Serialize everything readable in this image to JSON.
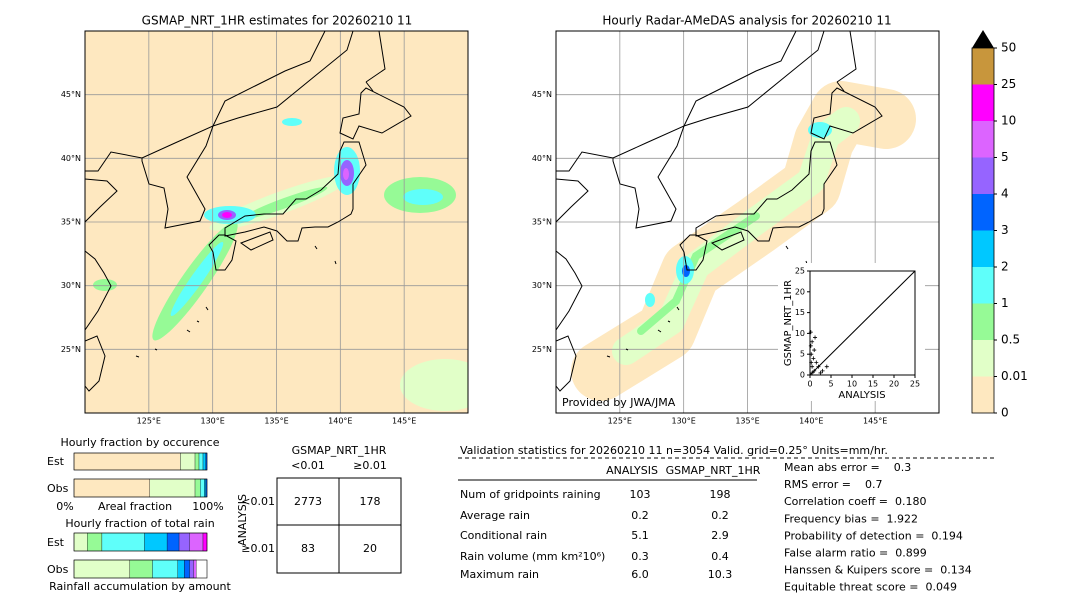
{
  "maps": [
    {
      "title": "GSMAP_NRT_1HR estimates for 20260210 11",
      "lonlim": [
        120,
        150
      ],
      "latlim": [
        20,
        50
      ],
      "lonticks": [
        {
          "value": 125,
          "label": "125°E"
        },
        {
          "value": 130,
          "label": "130°E"
        },
        {
          "value": 135,
          "label": "135°E"
        },
        {
          "value": 140,
          "label": "140°E"
        },
        {
          "value": 145,
          "label": "145°E"
        }
      ],
      "latticks": [
        {
          "value": 45,
          "label": "45°N"
        },
        {
          "value": 40,
          "label": "40°N"
        },
        {
          "value": 35,
          "label": "35°N"
        },
        {
          "value": 30,
          "label": "30°N"
        },
        {
          "value": 25,
          "label": "25°N"
        }
      ]
    },
    {
      "title": "Hourly Radar-AMeDAS analysis for 20260210 11",
      "lonlim": [
        120,
        150
      ],
      "latlim": [
        20,
        50
      ],
      "lonticks": [
        {
          "value": 125,
          "label": "125°E"
        },
        {
          "value": 130,
          "label": "130°E"
        },
        {
          "value": 135,
          "label": "135°E"
        },
        {
          "value": 140,
          "label": "140°E"
        },
        {
          "value": 145,
          "label": "145°E"
        }
      ],
      "latticks": [
        {
          "value": 45,
          "label": "45°N"
        },
        {
          "value": 40,
          "label": "40°N"
        },
        {
          "value": 35,
          "label": "35°N"
        },
        {
          "value": 30,
          "label": "30°N"
        },
        {
          "value": 25,
          "label": "25°N"
        }
      ],
      "credit": "Provided by JWA/JMA"
    }
  ],
  "colorbar": {
    "levels": [
      0,
      0.01,
      0.5,
      1,
      2,
      3,
      4,
      5,
      10,
      25,
      50
    ],
    "colors": [
      "#fee8c0",
      "#e1ffc8",
      "#96fa96",
      "#5ffffa",
      "#00c8ff",
      "#0064ff",
      "#9664ff",
      "#dc64ff",
      "#ff00ff",
      "#c8963c"
    ],
    "over_color": "#000000"
  },
  "scatter": {
    "type": "scatter",
    "xlabel": "ANALYSIS",
    "ylabel": "GSMAP_NRT_1HR",
    "xlim": [
      0,
      25
    ],
    "ylim": [
      0,
      25
    ],
    "xticks": [
      0,
      5,
      10,
      15,
      20,
      25
    ],
    "yticks": [
      0,
      5,
      10,
      15,
      20,
      25
    ],
    "x": [
      0.2,
      0.5,
      1,
      0.3,
      0.8,
      1.5,
      0.5,
      2,
      3,
      0.2,
      1,
      0.5,
      4,
      0.3,
      2.5,
      1.2
    ],
    "y": [
      10.3,
      8,
      6,
      5,
      4,
      3,
      2,
      2,
      1,
      7,
      1,
      0.5,
      2,
      3,
      0.5,
      9
    ]
  },
  "occurrence": {
    "title": "Hourly fraction by occurence",
    "rows": [
      {
        "label": "Est",
        "segments": [
          80,
          11,
          3,
          3,
          2,
          1
        ]
      },
      {
        "label": "Obs",
        "segments": [
          57,
          34,
          4,
          3,
          1,
          1
        ]
      }
    ],
    "axis_left": "0%",
    "axis_mid": "Areal fraction",
    "axis_right": "100%"
  },
  "total_rain": {
    "title": "Hourly fraction of total rain",
    "rows": [
      {
        "label": "Est",
        "segments": [
          0,
          10,
          11,
          32,
          17,
          9,
          8,
          10,
          3
        ]
      },
      {
        "label": "Obs",
        "segments": [
          0,
          42,
          17,
          19,
          5,
          4,
          3,
          2
        ]
      }
    ],
    "caption": "Rainfall accumulation by amount"
  },
  "contingency": {
    "col_title": "GSMAP_NRT_1HR",
    "col_labels": [
      "<0.01",
      "≥0.01"
    ],
    "row_title": "ANALYSIS",
    "row_labels": [
      "<0.01",
      "≥0.01"
    ],
    "cells": [
      [
        "2773",
        "178"
      ],
      [
        "83",
        "20"
      ]
    ]
  },
  "validation": {
    "title": "Validation statistics for 20260210 11  n=3054 Valid. grid=0.25° Units=mm/hr.",
    "headers": [
      "ANALYSIS",
      "GSMAP_NRT_1HR"
    ],
    "rows": [
      {
        "label": "Num of gridpoints raining",
        "values": [
          "103",
          "198"
        ]
      },
      {
        "label": "Average rain",
        "values": [
          "0.2",
          "0.2"
        ]
      },
      {
        "label": "Conditional rain",
        "values": [
          "5.1",
          "2.9"
        ]
      },
      {
        "label": "Rain volume (mm km²10⁶)",
        "values": [
          "0.3",
          "0.4"
        ]
      },
      {
        "label": "Maximum rain",
        "values": [
          "6.0",
          "10.3"
        ]
      }
    ],
    "scores": [
      "Mean abs error =    0.3",
      "RMS error =    0.7",
      "Correlation coeff =  0.180",
      "Frequency bias =  1.922",
      "Probability of detection =  0.194",
      "False alarm ratio =  0.899",
      "Hanssen & Kuipers score =  0.134",
      "Equitable threat score =  0.049"
    ]
  }
}
